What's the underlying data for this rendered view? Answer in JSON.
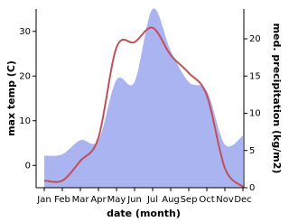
{
  "chart_data": {
    "type": "line-area",
    "categories": [
      "Jan",
      "Feb",
      "Mar",
      "Apr",
      "May",
      "Jun",
      "Jul",
      "Aug",
      "Sep",
      "Oct",
      "Nov",
      "Dec"
    ],
    "x_label": "date (month)",
    "y_label": "max temp (C)",
    "y2_label": "med. precipitation (kg/m2)",
    "ylim": [
      -5,
      35
    ],
    "yticks": [
      0,
      10,
      20,
      30
    ],
    "y2lim": [
      0,
      24
    ],
    "y2ticks": [
      0,
      5,
      10,
      15,
      20
    ],
    "series": [
      {
        "name": "precipitation",
        "type": "area",
        "axis": "y2",
        "color": "#aab4f0",
        "values": [
          4.3,
          4.5,
          6.4,
          6.4,
          14.5,
          14.2,
          24,
          18.4,
          14.2,
          13,
          5.8,
          7
        ]
      },
      {
        "name": "max temp",
        "type": "line",
        "color": "#c0505a",
        "values": [
          -3.4,
          -3.4,
          1,
          6.2,
          26.4,
          27.6,
          30.8,
          24.7,
          20.7,
          15.7,
          -0.6,
          -4.8
        ]
      }
    ]
  }
}
